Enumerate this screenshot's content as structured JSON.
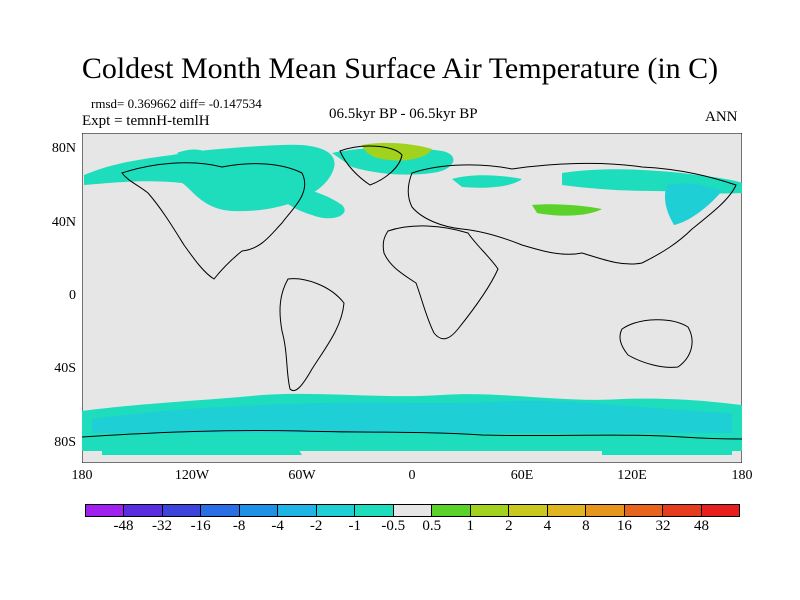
{
  "title": "Coldest Month Mean Surface Air Temperature (in C)",
  "stats": "rmsd= 0.369662  diff= -0.147534",
  "expt": "Expt = temnH-temlH",
  "period": "06.5kyr BP - 06.5kyr BP",
  "season": "ANN",
  "lat_labels": [
    "80N",
    "40N",
    "0",
    "40S",
    "80S"
  ],
  "lon_labels": [
    "180",
    "120W",
    "60W",
    "0",
    "60E",
    "120E",
    "180"
  ],
  "colorbar": {
    "levels": [
      "-48",
      "-32",
      "-16",
      "-8",
      "-4",
      "-2",
      "-1",
      "-0.5",
      "0.5",
      "1",
      "2",
      "4",
      "8",
      "16",
      "32",
      "48"
    ],
    "colors": [
      "#a020f0",
      "#5a2ee0",
      "#3c44dc",
      "#2a6ee6",
      "#1e90e6",
      "#1eb4e6",
      "#1ecfd6",
      "#1eddbc",
      "#e6e6e6",
      "#5ad22a",
      "#a0d21e",
      "#c8c81e",
      "#e0b41e",
      "#e6961e",
      "#e6641e",
      "#e63c1e",
      "#e61e1e"
    ]
  },
  "colors": {
    "ocean_land_background": "#e6e6e6",
    "anomaly_negative_small": "#1eddbc",
    "anomaly_negative_medium": "#1ecfd6",
    "anomaly_positive_small": "#5ad22a",
    "anomaly_positive_medium": "#a0d21e",
    "coastline": "#000000"
  }
}
